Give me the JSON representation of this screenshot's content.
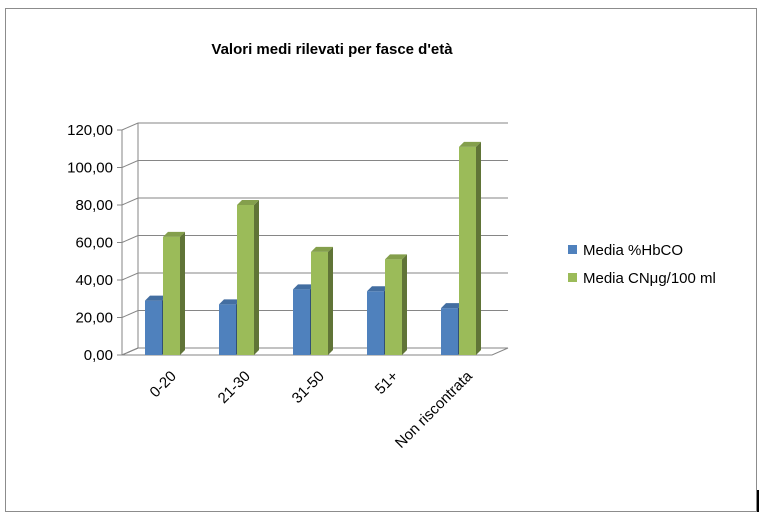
{
  "chart_data": {
    "type": "bar",
    "title": "Valori medi rilevati per fasce d'età",
    "xlabel": "",
    "ylabel": "",
    "categories": [
      "0-20",
      "21-30",
      "31-50",
      "51+",
      "Non riscontrata"
    ],
    "series": [
      {
        "name": "Media %HbCO",
        "values": [
          29,
          27,
          35,
          34,
          25
        ],
        "color": "#4f81bd"
      },
      {
        "name": "Media CNμg/100 ml",
        "values": [
          63,
          80,
          55,
          51,
          111
        ],
        "color": "#9bbb59"
      }
    ],
    "yticks": [
      "0,00",
      "20,00",
      "40,00",
      "60,00",
      "80,00",
      "100,00",
      "120,00"
    ],
    "ylim": [
      0,
      120
    ],
    "grid": true,
    "legend_position": "right",
    "style": "3d-clustered-column"
  }
}
